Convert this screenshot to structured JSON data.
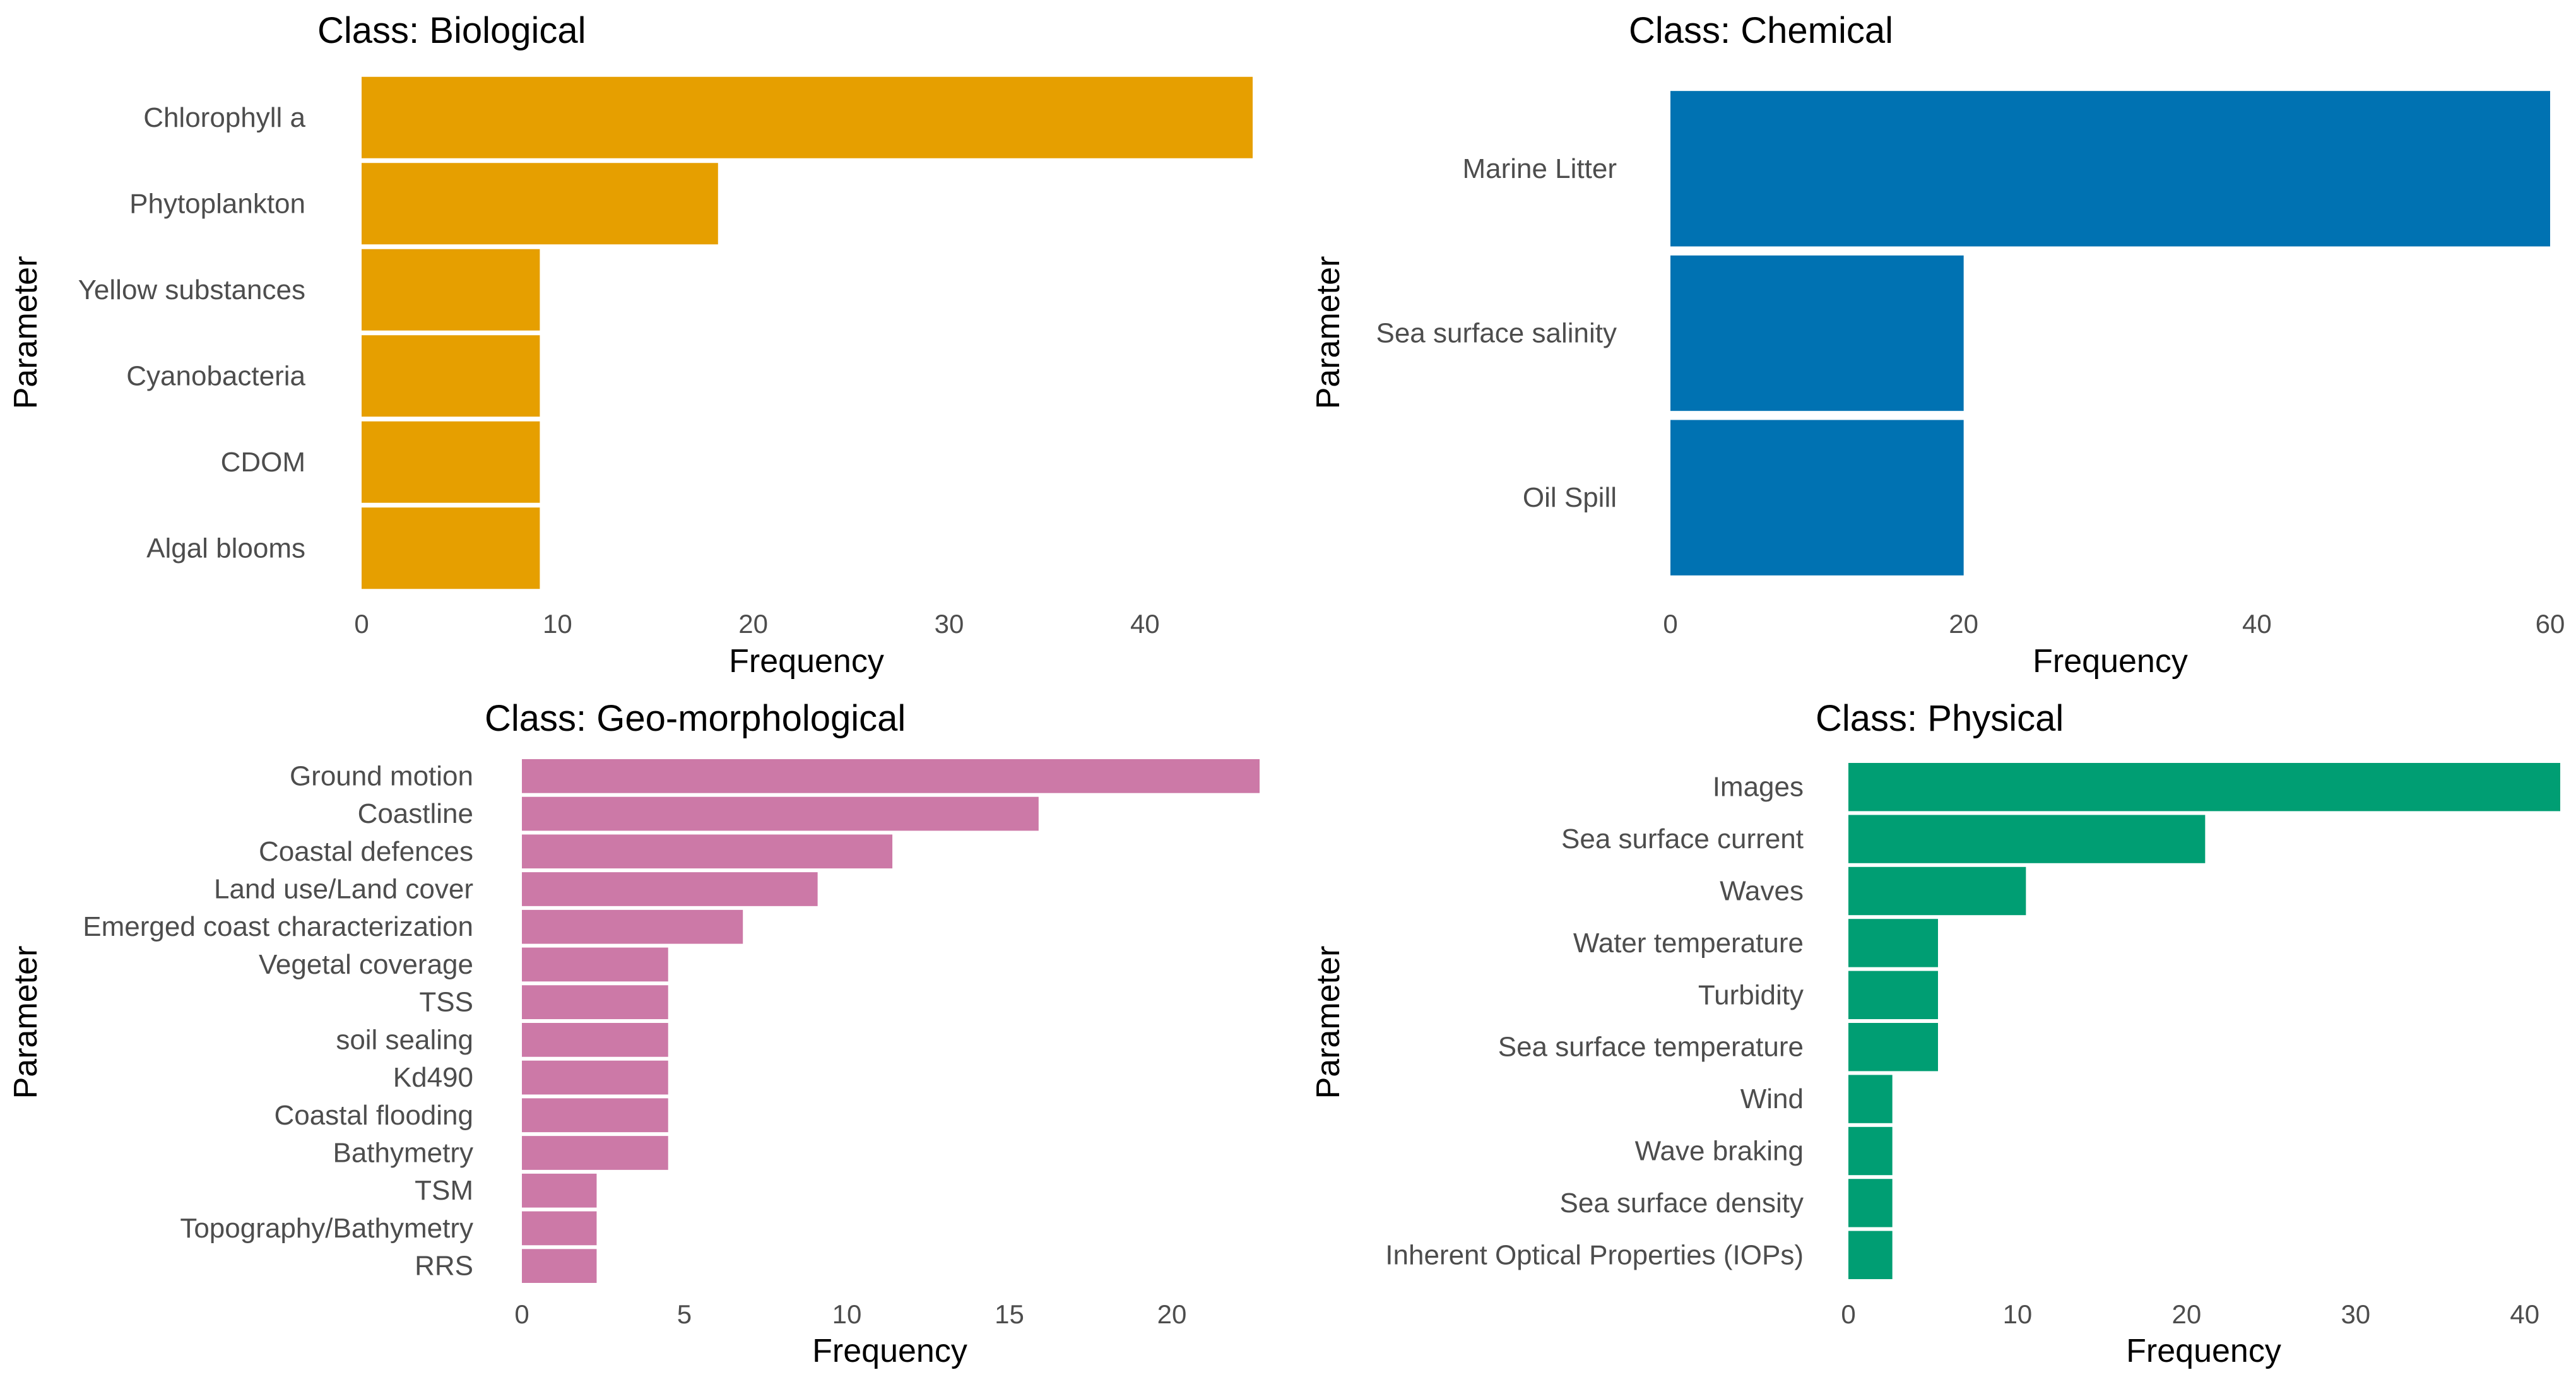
{
  "chart_data": [
    {
      "type": "bar",
      "orientation": "horizontal",
      "title": "Class: Biological",
      "xlabel": "Frequency",
      "ylabel": "Parameter",
      "color": "#E69F00",
      "categories": [
        "Chlorophyll a",
        "Phytoplankton",
        "Yellow substances",
        "Cyanobacteria",
        "CDOM",
        "Algal blooms"
      ],
      "values": [
        45.5,
        18.2,
        9.1,
        9.1,
        9.1,
        9.1
      ],
      "xlim": [
        0,
        45.5
      ],
      "xticks": [
        0,
        10,
        20,
        30,
        40
      ],
      "grid": false
    },
    {
      "type": "bar",
      "orientation": "horizontal",
      "title": "Class: Chemical",
      "xlabel": "Frequency",
      "ylabel": "Parameter",
      "color": "#0072B2",
      "categories": [
        "Marine Litter",
        "Sea surface salinity",
        "Oil Spill"
      ],
      "values": [
        60,
        20,
        20
      ],
      "xlim": [
        0,
        60
      ],
      "xticks": [
        0,
        20,
        40,
        60
      ],
      "grid": false
    },
    {
      "type": "bar",
      "orientation": "horizontal",
      "title": "Class: Geo-morphological",
      "xlabel": "Frequency",
      "ylabel": "Parameter",
      "color": "#CC79A7",
      "categories": [
        "Ground motion",
        "Coastline",
        "Coastal defences",
        "Land use/Land cover",
        "Emerged coast characterization",
        "Vegetal coverage",
        "TSS",
        "soil sealing",
        "Kd490",
        "Coastal flooding",
        "Bathymetry",
        "TSM",
        "Topography/Bathymetry",
        "RRS"
      ],
      "values": [
        22.7,
        15.9,
        11.4,
        9.1,
        6.8,
        4.5,
        4.5,
        4.5,
        4.5,
        4.5,
        4.5,
        2.3,
        2.3,
        2.3
      ],
      "xlim": [
        0,
        22.7
      ],
      "xticks": [
        0,
        5,
        10,
        15,
        20
      ],
      "grid": false
    },
    {
      "type": "bar",
      "orientation": "horizontal",
      "title": "Class: Physical",
      "xlabel": "Frequency",
      "ylabel": "Parameter",
      "color": "#009E73",
      "categories": [
        "Images",
        "Sea surface current",
        "Waves",
        "Water temperature",
        "Turbidity",
        "Sea surface temperature",
        "Wind",
        "Wave braking",
        "Sea surface density",
        "Inherent Optical Properties (IOPs)"
      ],
      "values": [
        42.1,
        21.1,
        10.5,
        5.3,
        5.3,
        5.3,
        2.6,
        2.6,
        2.6,
        2.6
      ],
      "xlim": [
        0,
        42.1
      ],
      "xticks": [
        0,
        10,
        20,
        30,
        40
      ],
      "grid": false
    }
  ]
}
